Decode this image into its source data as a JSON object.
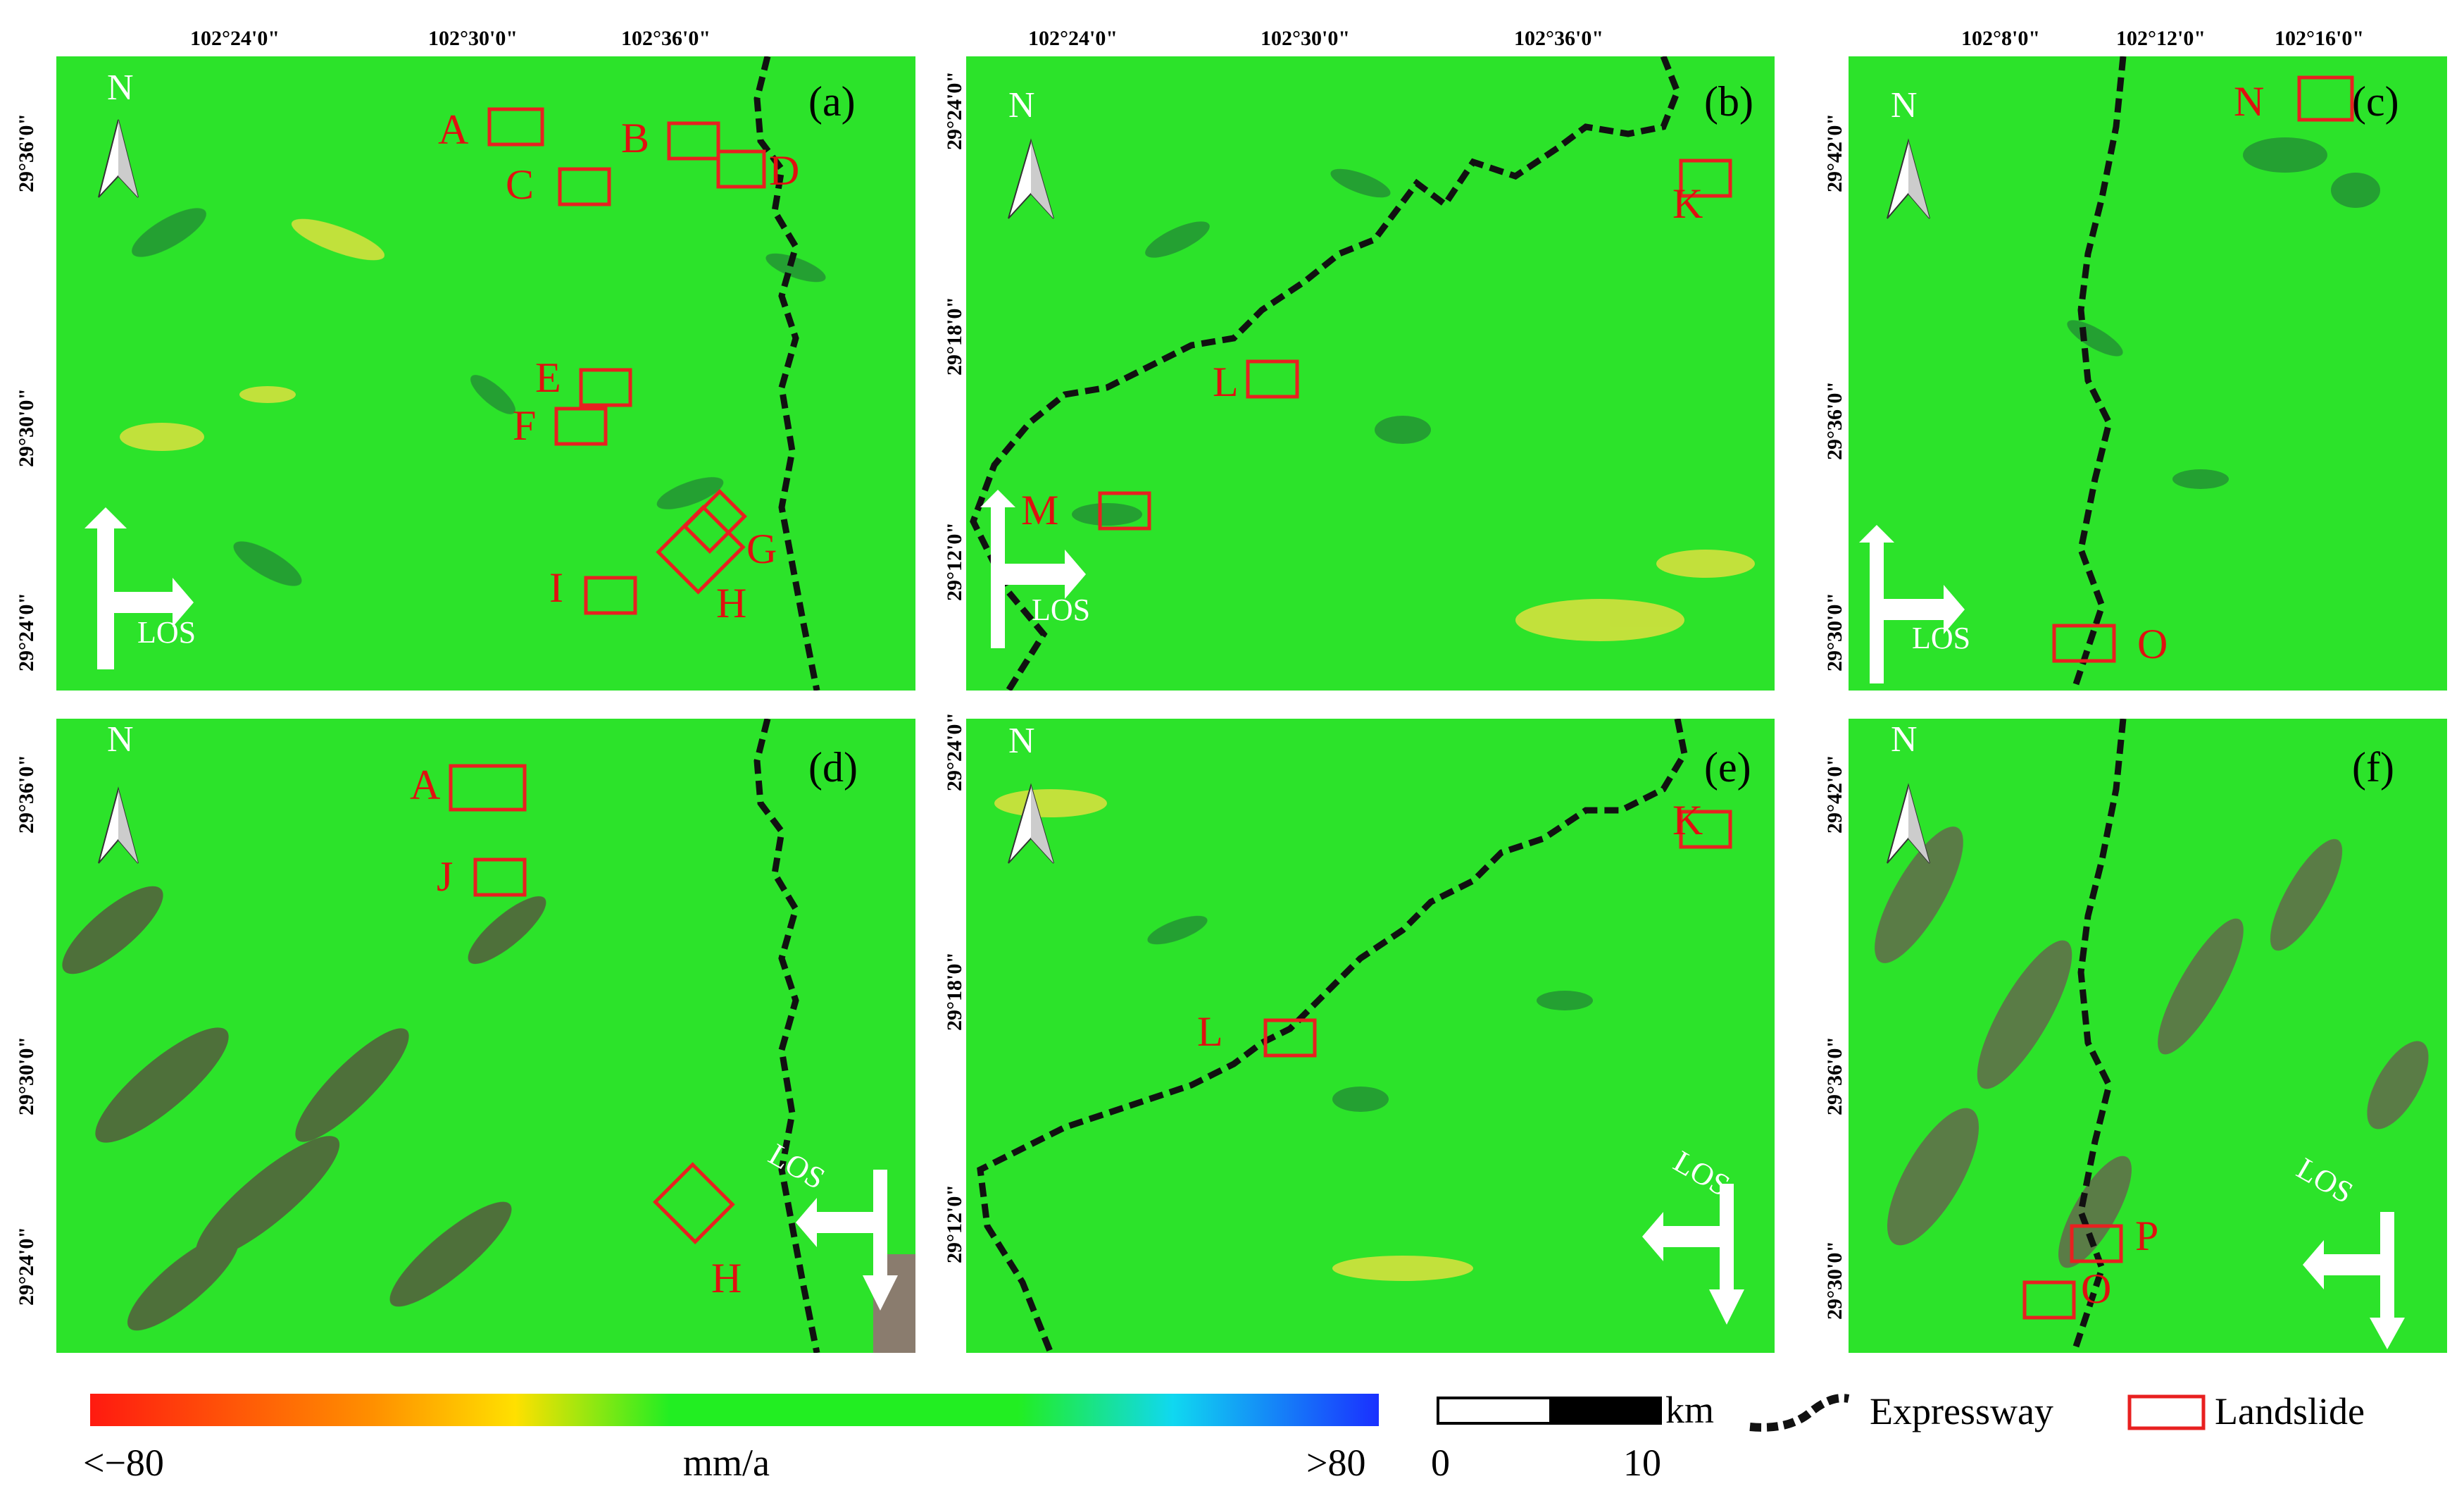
{
  "colors": {
    "map_green": "#2ce32a",
    "box_red": "#e82020",
    "label_red": "#e01010",
    "scale_low": "#ff1a10",
    "scale_mid_yellow": "#ffe000",
    "scale_mid_green": "#22ee22",
    "scale_high_cyan": "#10d8f0",
    "scale_high": "#1a30ff"
  },
  "icons": [
    "north-arrow-icon",
    "los-arrow-icon",
    "expressway-line-icon",
    "landslide-box-icon"
  ],
  "panels": {
    "a": {
      "tag": "(a)",
      "x_ticks": [
        "102°24'0\"",
        "102°30'0\"",
        "102°36'0\""
      ],
      "y_ticks": [
        "29°36'0\"",
        "29°30'0\"",
        "29°24'0\""
      ],
      "north": "N",
      "los": "LOS",
      "landslides": [
        "A",
        "B",
        "C",
        "D",
        "E",
        "F",
        "G",
        "H",
        "I"
      ]
    },
    "b": {
      "tag": "(b)",
      "x_ticks": [
        "102°24'0\"",
        "102°30'0\"",
        "102°36'0\""
      ],
      "y_ticks": [
        "29°24'0\"",
        "29°18'0\"",
        "29°12'0\""
      ],
      "north": "N",
      "los": "LOS",
      "landslides": [
        "K",
        "L",
        "M"
      ]
    },
    "c": {
      "tag": "(c)",
      "x_ticks": [
        "102°8'0\"",
        "102°12'0\"",
        "102°16'0\""
      ],
      "y_ticks": [
        "29°42'0\"",
        "29°36'0\"",
        "29°30'0\""
      ],
      "north": "N",
      "los": "LOS",
      "landslides": [
        "N",
        "O"
      ]
    },
    "d": {
      "tag": "(d)",
      "y_ticks": [
        "29°36'0\"",
        "29°30'0\"",
        "29°24'0\""
      ],
      "north": "N",
      "los": "LOS",
      "landslides": [
        "A",
        "J",
        "H"
      ]
    },
    "e": {
      "tag": "(e)",
      "y_ticks": [
        "29°24'0\"",
        "29°18'0\"",
        "29°12'0\""
      ],
      "north": "N",
      "los": "LOS",
      "landslides": [
        "K",
        "L"
      ]
    },
    "f": {
      "tag": "(f)",
      "y_ticks": [
        "29°42'0\"",
        "29°36'0\"",
        "29°30'0\""
      ],
      "north": "N",
      "los": "LOS",
      "landslides": [
        "P",
        "O"
      ]
    }
  },
  "legend": {
    "colorbar_min": "<−80",
    "colorbar_unit": "mm/a",
    "colorbar_max": ">80",
    "scale_unit": "km",
    "scale_start": "0",
    "scale_end": "10",
    "expressway": "Expressway",
    "landslide": "Landslide"
  }
}
